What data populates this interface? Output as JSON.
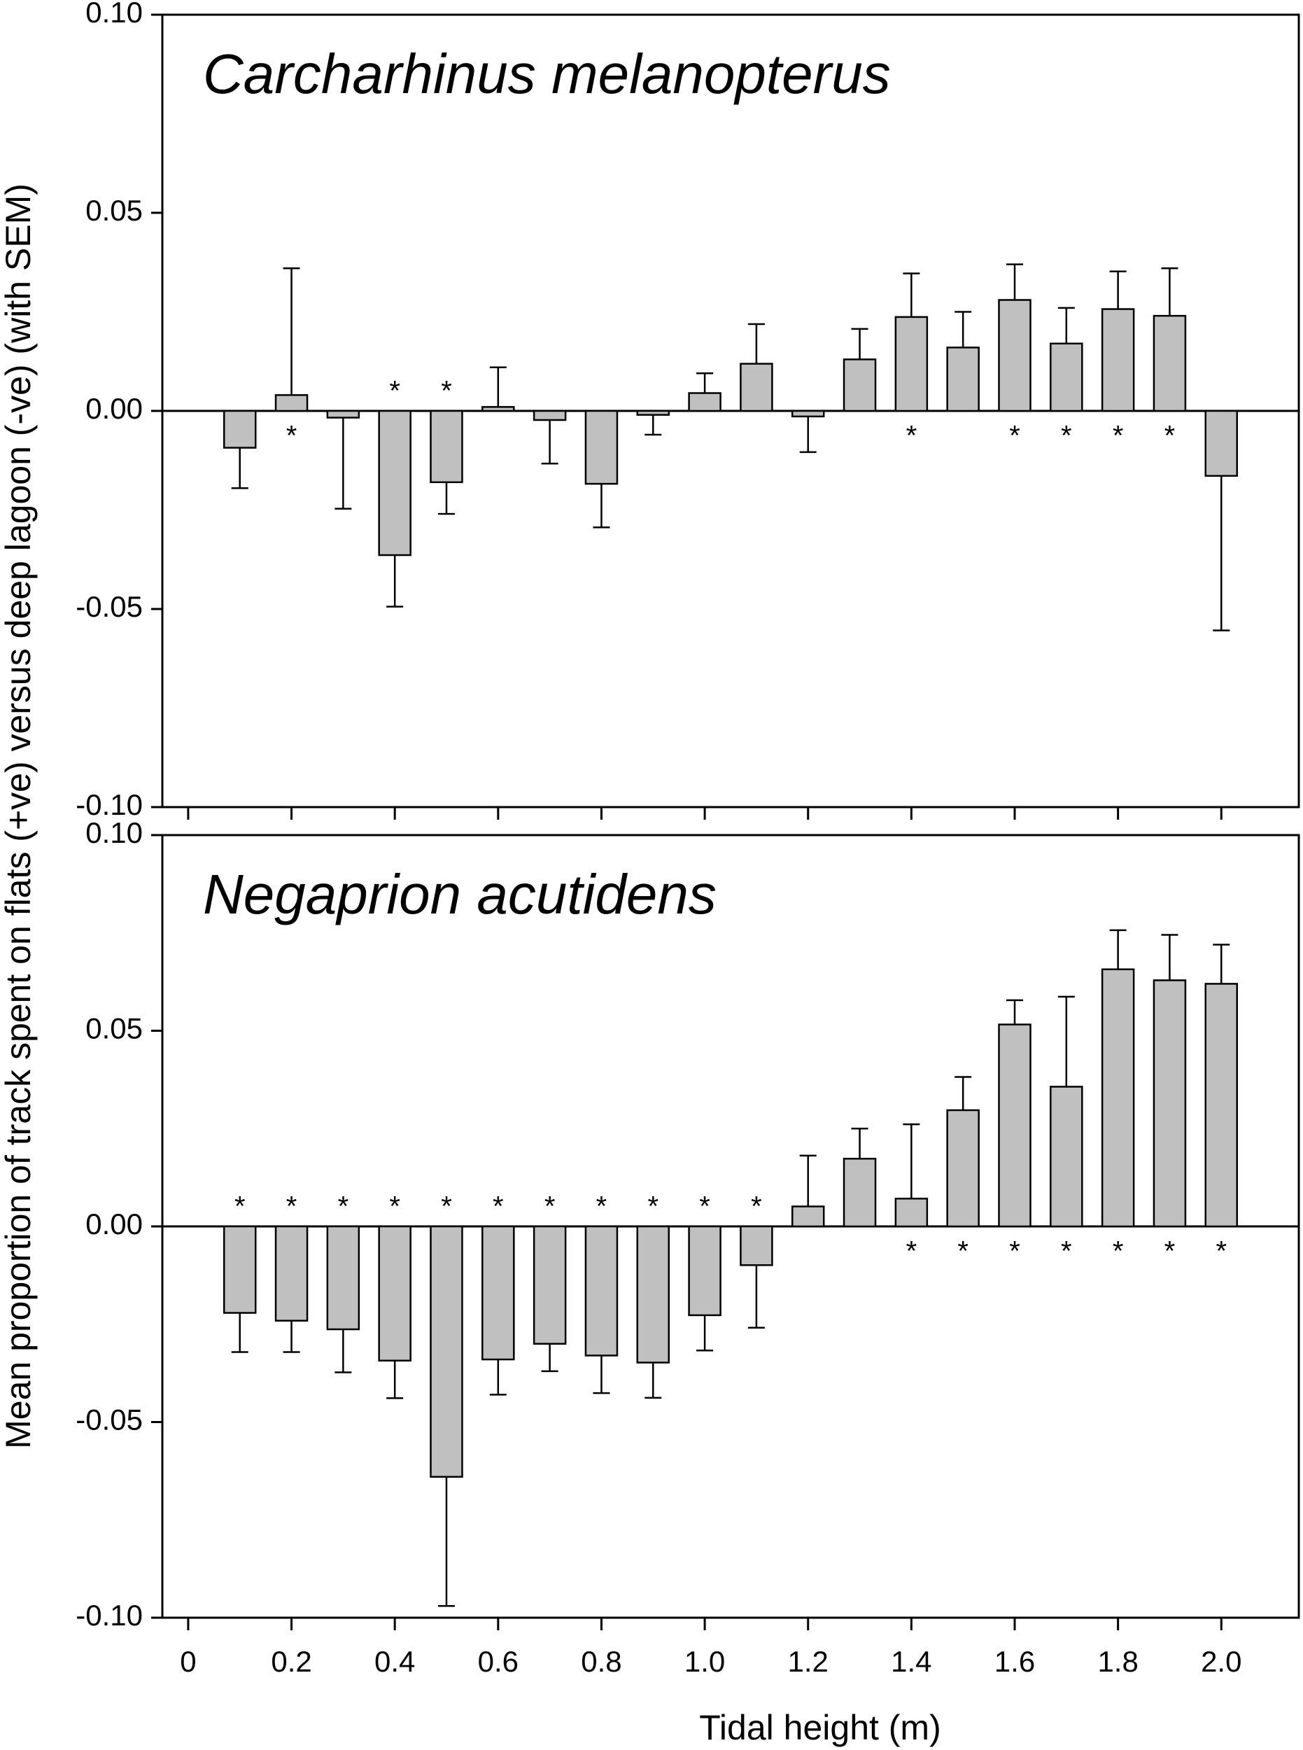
{
  "chart_data": {
    "type": "bar",
    "x_label": "Tidal height (m)",
    "y_label": "Mean proportion of track spent on flats (+ve) versus deep lagoon (-ve) (with SEM)",
    "x": [
      0.1,
      0.2,
      0.3,
      0.4,
      0.5,
      0.6,
      0.7,
      0.8,
      0.9,
      1.0,
      1.1,
      1.2,
      1.3,
      1.4,
      1.5,
      1.6,
      1.7,
      1.8,
      1.9,
      2.0
    ],
    "xlim": [
      -0.05,
      2.15
    ],
    "xticks": [
      0,
      0.2,
      0.4,
      0.6,
      0.8,
      {
        "value": 1.0,
        "label": "1.0"
      },
      1.2,
      1.4,
      1.6,
      1.8,
      {
        "value": 2.0,
        "label": "2.0"
      }
    ],
    "ylim": [
      -0.1,
      0.1
    ],
    "yticks": [
      {
        "value": -0.1,
        "label": "-0.10"
      },
      {
        "value": -0.05,
        "label": "-0.05"
      },
      {
        "value": 0,
        "label": "0.00"
      },
      {
        "value": 0.05,
        "label": "0.05"
      },
      {
        "value": 0.1,
        "label": "0.10"
      }
    ],
    "color": "#c0c0c0",
    "significance_marker": "*",
    "significance_color": "#ff0000",
    "panels": [
      {
        "title": "Carcharhinus melanopterus",
        "values": [
          -0.0093,
          0.004,
          -0.0017,
          -0.0364,
          -0.018,
          0.001,
          -0.0023,
          -0.0184,
          -0.001,
          0.0045,
          0.0119,
          -0.0014,
          0.013,
          0.0237,
          0.016,
          0.028,
          0.017,
          0.0257,
          0.024,
          -0.0164
        ],
        "errors": [
          0.0102,
          0.032,
          0.023,
          0.013,
          0.008,
          0.01,
          0.011,
          0.011,
          0.005,
          0.005,
          0.01,
          0.009,
          0.0077,
          0.011,
          0.009,
          0.009,
          0.009,
          0.0095,
          0.012,
          0.039
        ],
        "significant": [
          false,
          true,
          false,
          true,
          true,
          false,
          false,
          false,
          false,
          false,
          false,
          false,
          false,
          true,
          false,
          true,
          true,
          true,
          true,
          false
        ]
      },
      {
        "title": "Negaprion acutidens",
        "values": [
          -0.0221,
          -0.0241,
          -0.0263,
          -0.0343,
          -0.064,
          -0.034,
          -0.03,
          -0.033,
          -0.0348,
          -0.0227,
          -0.0099,
          0.0051,
          0.0173,
          0.0071,
          0.0297,
          0.0516,
          0.0357,
          0.0657,
          0.0629,
          0.062
        ],
        "errors": [
          0.01,
          0.008,
          0.011,
          0.0096,
          0.033,
          0.009,
          0.007,
          0.0096,
          0.009,
          0.009,
          0.016,
          0.013,
          0.0077,
          0.019,
          0.0085,
          0.0062,
          0.023,
          0.01,
          0.0116,
          0.01
        ],
        "significant": [
          true,
          true,
          true,
          true,
          true,
          true,
          true,
          true,
          true,
          true,
          true,
          false,
          false,
          true,
          true,
          true,
          true,
          true,
          true,
          true
        ]
      }
    ]
  }
}
